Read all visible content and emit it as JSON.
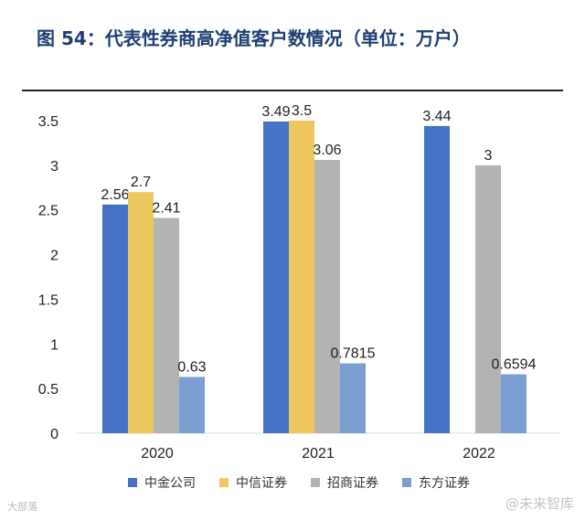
{
  "title": "图 54：代表性券商高净值客户数情况（单位：万户）",
  "colors": {
    "series": [
      "#4472c4",
      "#eec75f",
      "#b3b3b3",
      "#7b9fd1"
    ],
    "axis": "#d9d9d9",
    "text": "#222222"
  },
  "chart_data": {
    "type": "bar",
    "title": "代表性券商高净值客户数情况（单位：万户）",
    "categories": [
      "2020",
      "2021",
      "2022"
    ],
    "series": [
      {
        "name": "中金公司",
        "values": [
          2.56,
          3.49,
          3.44
        ],
        "labels": [
          "2.56",
          "3.49",
          "3.44"
        ]
      },
      {
        "name": "中信证券",
        "values": [
          2.7,
          3.5,
          null
        ],
        "labels": [
          "2.7",
          "3.5",
          ""
        ]
      },
      {
        "name": "招商证券",
        "values": [
          2.41,
          3.06,
          3
        ],
        "labels": [
          "2.41",
          "3.06",
          "3"
        ]
      },
      {
        "name": "东方证券",
        "values": [
          0.63,
          0.7815,
          0.6594
        ],
        "labels": [
          "0.63",
          "0.7815",
          "0.6594"
        ]
      }
    ],
    "ylim": [
      0,
      3.5
    ],
    "yticks": [
      "0",
      "0.5",
      "1",
      "1.5",
      "2",
      "2.5",
      "3",
      "3.5"
    ],
    "xlabel": "",
    "ylabel": "",
    "legend": "bottom"
  },
  "watermarks": {
    "left": "大部落",
    "right": "@未来智库"
  }
}
